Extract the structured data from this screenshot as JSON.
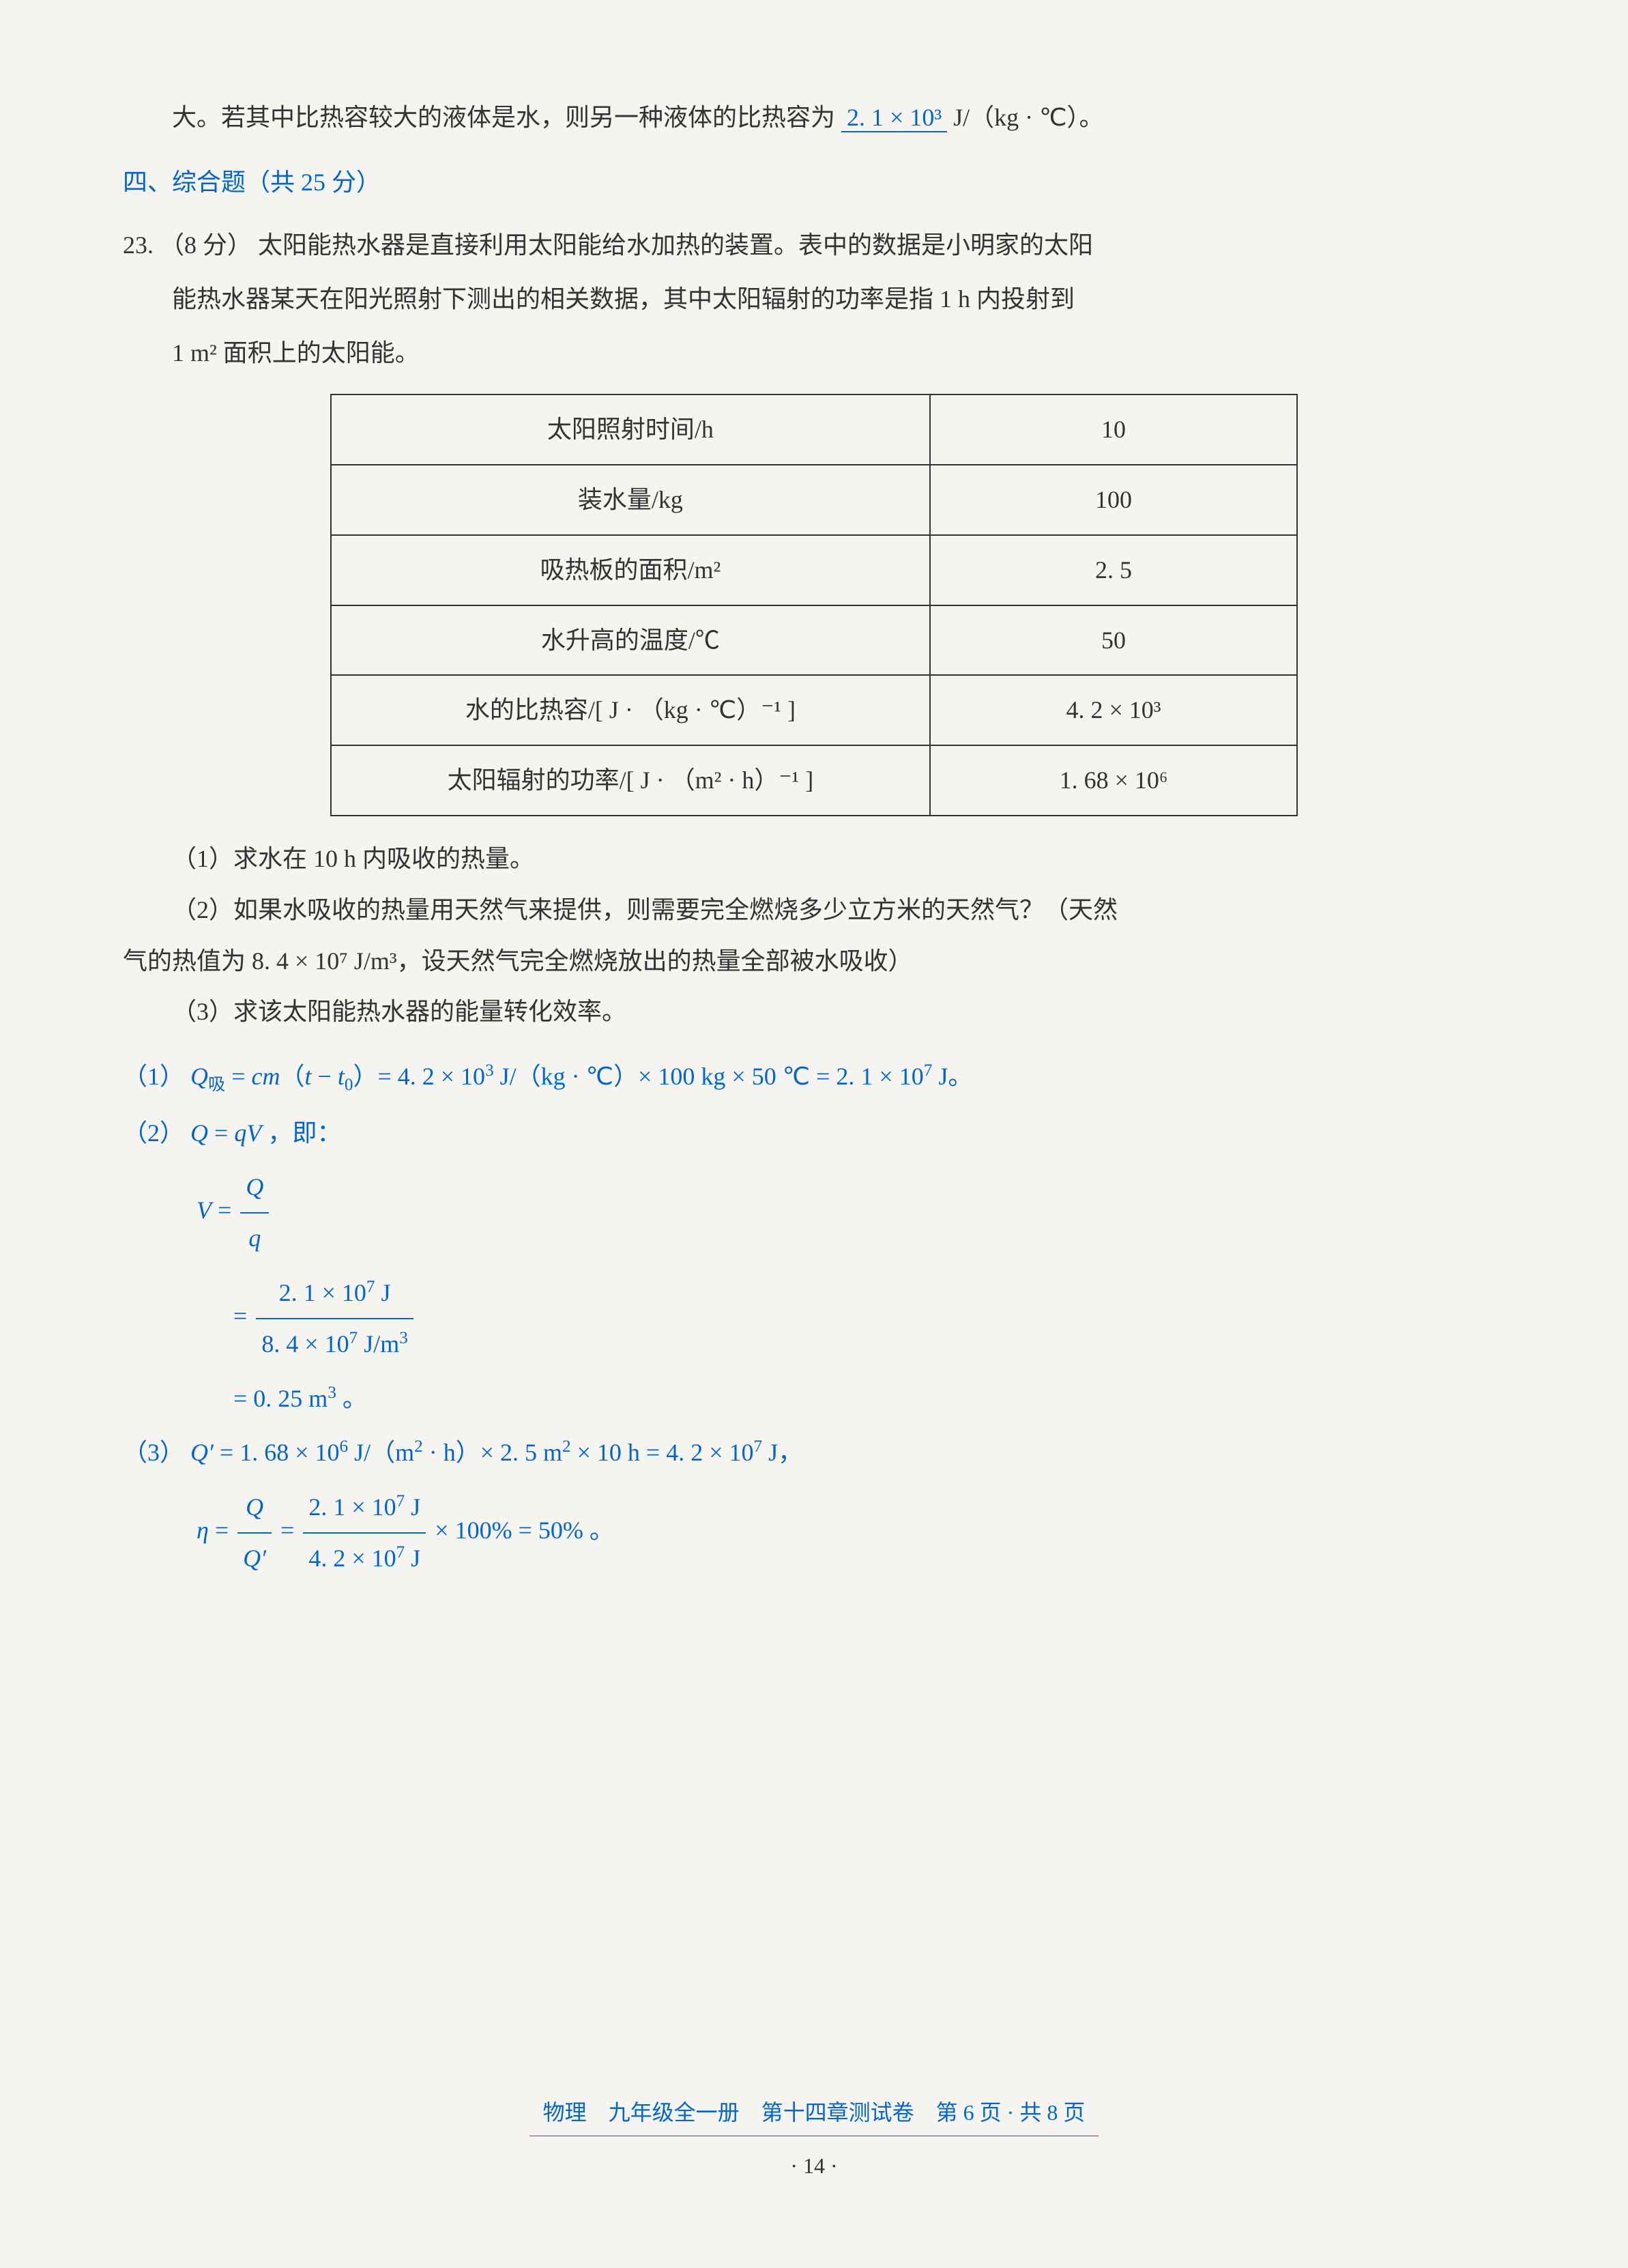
{
  "intro_line": {
    "prefix": "大。若其中比热容较大的液体是水，则另一种液体的比热容为",
    "answer": "2. 1 × 10³",
    "suffix": "J/（kg · ℃）。"
  },
  "section4": {
    "header": "四、综合题（共 25 分）"
  },
  "q23": {
    "number": "23.",
    "points": "（8 分）",
    "text1": "太阳能热水器是直接利用太阳能给水加热的装置。表中的数据是小明家的太阳",
    "text2": "能热水器某天在阳光照射下测出的相关数据，其中太阳辐射的功率是指 1 h 内投射到",
    "text3": "1 m² 面积上的太阳能。",
    "table": {
      "rows": [
        {
          "label": "太阳照射时间/h",
          "value": "10"
        },
        {
          "label": "装水量/kg",
          "value": "100"
        },
        {
          "label": "吸热板的面积/m²",
          "value": "2. 5"
        },
        {
          "label": "水升高的温度/℃",
          "value": "50"
        },
        {
          "label": "水的比热容/[ J · （kg · ℃）⁻¹ ]",
          "value": "4. 2 × 10³"
        },
        {
          "label": "太阳辐射的功率/[ J · （m² · h）⁻¹ ]",
          "value": "1. 68 × 10⁶"
        }
      ]
    },
    "sub1": "（1）求水在 10 h 内吸收的热量。",
    "sub2": "（2）如果水吸收的热量用天然气来提供，则需要完全燃烧多少立方米的天然气？（天然",
    "sub2_cont": "气的热值为 8. 4 × 10⁷ J/m³，设天然气完全燃烧放出的热量全部被水吸收）",
    "sub3": "（3）求该太阳能热水器的能量转化效率。"
  },
  "solutions": {
    "s1_label": "（1）",
    "s1_formula": "Q吸 = cm（t − t₀）= 4. 2 × 10³ J/（kg · ℃）× 100 kg × 50 ℃ = 2. 1 × 10⁷ J。",
    "s2_label": "（2）",
    "s2_line1": "Q = qV，即：",
    "s2_V": "V",
    "s2_frac1_num": "Q",
    "s2_frac1_den": "q",
    "s2_frac2_num": "2. 1 × 10⁷ J",
    "s2_frac2_den": "8. 4 × 10⁷ J/m³",
    "s2_result": "= 0. 25 m³ 。",
    "s3_label": "（3）",
    "s3_line1": "Q′ = 1. 68 × 10⁶ J/（m² · h）× 2. 5 m² × 10 h = 4. 2 × 10⁷ J，",
    "s3_eta": "η",
    "s3_frac1_num": "Q",
    "s3_frac1_den": "Q′",
    "s3_frac2_num": "2. 1 × 10⁷ J",
    "s3_frac2_den": "4. 2 × 10⁷ J",
    "s3_result": "× 100% = 50% 。"
  },
  "footer": {
    "text": "物理　九年级全一册　第十四章测试卷　第 6 页 · 共 8 页",
    "page": "· 14 ·"
  },
  "colors": {
    "text": "#333333",
    "answer": "#0066cc",
    "background": "#f5f4f0"
  }
}
